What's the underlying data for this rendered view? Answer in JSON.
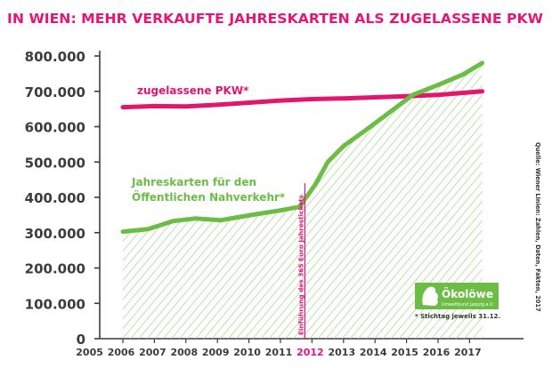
{
  "colors": {
    "title": "#e5157a",
    "pkw": "#e2166f",
    "jahreskarten": "#6cbd45",
    "hatch": "#9bd07b",
    "axis": "#3c3c3c",
    "highlight_year": "#e5157a",
    "logo": "#6cbd45"
  },
  "chart_data": {
    "type": "line",
    "title": "IN WIEN: MEHR VERKAUFTE JAHRESKARTEN ALS ZUGELASSENE PKW",
    "xlabel": "",
    "ylabel": "",
    "ylim": [
      0,
      800000
    ],
    "y_ticks": [
      0,
      100000,
      200000,
      300000,
      400000,
      500000,
      600000,
      700000,
      800000
    ],
    "y_tick_labels": [
      "0",
      "100.000",
      "200.000",
      "300.000",
      "400.000",
      "500.000",
      "600.000",
      "700.000",
      "800.000"
    ],
    "x": [
      2006,
      2007,
      2008,
      2009,
      2010,
      2011,
      2012,
      2013,
      2014,
      2015,
      2016,
      2017
    ],
    "x_tick_labels": [
      "2005",
      "2006",
      "2007",
      "2008",
      "2009",
      "2010",
      "2011",
      "2012",
      "2013",
      "2014",
      "2015",
      "2016",
      "2017"
    ],
    "x_tick_years": [
      2005,
      2006,
      2007,
      2008,
      2009,
      2010,
      2011,
      2012,
      2013,
      2014,
      2015,
      2016,
      2017
    ],
    "highlight_year": 2012,
    "series": [
      {
        "name": "zugelassene PKW*",
        "x": [
          2006,
          2007,
          2008,
          2009,
          2010,
          2011,
          2012,
          2013,
          2014,
          2015,
          2016,
          2017.4
        ],
        "values": [
          655000,
          658000,
          657000,
          662000,
          668000,
          674000,
          678000,
          680000,
          683000,
          686000,
          690000,
          700000
        ]
      },
      {
        "name": "Jahreskarten für den Öffentlichen Nahverkehr*",
        "label_lines": [
          "Jahreskarten für den",
          "Öffentlichen Nahverkehr*"
        ],
        "x": [
          2006,
          2006.8,
          2007.6,
          2008.3,
          2009.1,
          2010.2,
          2011,
          2011.6,
          2012.1,
          2012.5,
          2013,
          2013.7,
          2014.5,
          2015.2,
          2016,
          2016.8,
          2017.4
        ],
        "values": [
          303000,
          310000,
          333000,
          340000,
          335000,
          352000,
          363000,
          373000,
          435000,
          500000,
          545000,
          590000,
          643000,
          690000,
          718000,
          748000,
          780000
        ]
      }
    ],
    "annotations": {
      "vertical_note": "Einführung des 365 Euro Jahrestickets",
      "vertical_note_year": 2012,
      "footnote": "* Stichtag jeweils 31.12.",
      "source": "Quelle: Wiener Linien: Zahlen, Daten, Fakten, 2017"
    }
  },
  "logo": {
    "name": "Ökolöwe",
    "subtitle": "Umweltbund Leipzig e.V."
  }
}
